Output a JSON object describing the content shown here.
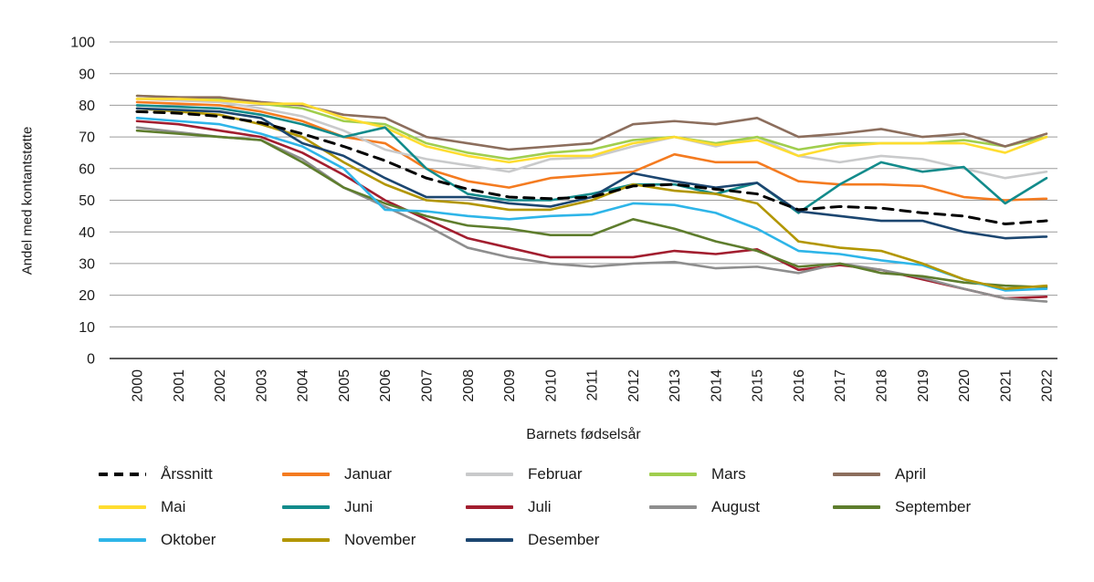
{
  "chart_data": {
    "type": "line",
    "title": "",
    "xlabel": "Barnets fødselsår",
    "ylabel": "Andel med kontantstøtte",
    "ylim": [
      0,
      100
    ],
    "yticks": [
      0,
      10,
      20,
      30,
      40,
      50,
      60,
      70,
      80,
      90,
      100
    ],
    "grid": true,
    "legend_position": "bottom",
    "x": [
      "2000",
      "2001",
      "2002",
      "2003",
      "2004",
      "2005",
      "2006",
      "2007",
      "2008",
      "2009",
      "2010",
      "2011",
      "2012",
      "2013",
      "2014",
      "2015",
      "2016",
      "2017",
      "2018",
      "2019",
      "2020",
      "2021",
      "2022"
    ],
    "series": [
      {
        "name": "Årssnitt",
        "color": "#000000",
        "dash": true,
        "values": [
          78,
          77.5,
          76.5,
          74.5,
          71,
          67,
          62.5,
          57,
          53.5,
          51,
          50.5,
          51,
          54.5,
          55,
          53.5,
          52,
          47,
          48,
          47.5,
          46,
          45,
          42.5,
          43.5
        ]
      },
      {
        "name": "Januar",
        "color": "#F47B20",
        "dash": false,
        "values": [
          81,
          80.5,
          80,
          78,
          75,
          70,
          68,
          60,
          56,
          54,
          57,
          58,
          59,
          64.5,
          62,
          62,
          56,
          55,
          55,
          54.5,
          51,
          50,
          50.5
        ]
      },
      {
        "name": "Februar",
        "color": "#C9CACB",
        "dash": false,
        "values": [
          82,
          81.5,
          81,
          79,
          76.5,
          72,
          66,
          63,
          61,
          59,
          63,
          63.5,
          67,
          70,
          67,
          70,
          64,
          62,
          64,
          63,
          60,
          57,
          59
        ]
      },
      {
        "name": "Mars",
        "color": "#A0CE4E",
        "dash": false,
        "values": [
          83,
          82.5,
          82,
          80.5,
          79,
          75,
          74,
          68,
          65,
          63,
          65,
          66,
          69,
          70,
          68,
          70,
          66,
          68,
          68,
          68,
          69,
          67,
          70
        ]
      },
      {
        "name": "April",
        "color": "#8C6E5D",
        "dash": false,
        "values": [
          83,
          82.5,
          82.5,
          81,
          80,
          77,
          76,
          70,
          68,
          66,
          67,
          68,
          74,
          75,
          74,
          76,
          70,
          71,
          72.5,
          70,
          71,
          67,
          71
        ]
      },
      {
        "name": "Mai",
        "color": "#FFDD30",
        "dash": false,
        "values": [
          82,
          82,
          81.5,
          80.5,
          80.5,
          76,
          73,
          67,
          64,
          62,
          64,
          64,
          68,
          70,
          67.5,
          69,
          64,
          67,
          68,
          68,
          68,
          65,
          70
        ]
      },
      {
        "name": "Juni",
        "color": "#128B8B",
        "dash": false,
        "values": [
          80,
          79.5,
          79,
          77,
          74,
          70,
          73,
          60,
          52,
          50,
          50,
          52,
          55,
          55,
          52,
          55.5,
          46,
          55,
          62,
          59,
          60.5,
          49,
          57
        ]
      },
      {
        "name": "Juli",
        "color": "#A21E2F",
        "dash": false,
        "values": [
          75,
          74,
          72,
          70,
          65,
          58,
          50,
          44,
          38,
          35,
          32,
          32,
          32,
          34,
          33,
          34.5,
          28,
          29.5,
          28,
          25,
          22,
          19,
          19.5
        ]
      },
      {
        "name": "August",
        "color": "#8E8E8E",
        "dash": false,
        "values": [
          73,
          71.5,
          70,
          69,
          63,
          54,
          48,
          42,
          35,
          32,
          30,
          29,
          30,
          30.5,
          28.5,
          29,
          27,
          30,
          28,
          25.5,
          22,
          19,
          18
        ]
      },
      {
        "name": "September",
        "color": "#5E7D2D",
        "dash": false,
        "values": [
          72,
          71,
          70,
          69,
          62,
          54,
          49,
          45,
          42,
          41,
          39,
          39,
          44,
          41,
          37,
          34,
          29,
          30,
          27,
          26,
          24,
          23,
          22.5
        ]
      },
      {
        "name": "Oktober",
        "color": "#2EB5E8",
        "dash": false,
        "values": [
          76,
          75,
          74,
          71,
          67,
          60,
          47,
          46.5,
          45,
          44,
          45,
          45.5,
          49,
          48.5,
          46,
          41,
          34,
          33,
          31,
          29.5,
          25,
          21.5,
          22
        ]
      },
      {
        "name": "November",
        "color": "#B29600",
        "dash": false,
        "values": [
          79,
          78,
          77,
          74,
          70,
          62,
          55,
          50,
          49,
          47,
          47,
          50,
          55,
          53,
          52,
          49,
          37,
          35,
          34,
          30,
          25,
          22,
          23
        ]
      },
      {
        "name": "Desember",
        "color": "#1C4670",
        "dash": false,
        "values": [
          79,
          78.5,
          78,
          76,
          68,
          64,
          57,
          51,
          51,
          49,
          48,
          51,
          58.5,
          56,
          54,
          55.5,
          46.5,
          45,
          43.5,
          43.5,
          40,
          38,
          38.5
        ]
      }
    ]
  },
  "colors": {
    "grid": "#9b9b9b",
    "axis": "#262626",
    "text": "#1a1a1a",
    "background": "#ffffff"
  }
}
